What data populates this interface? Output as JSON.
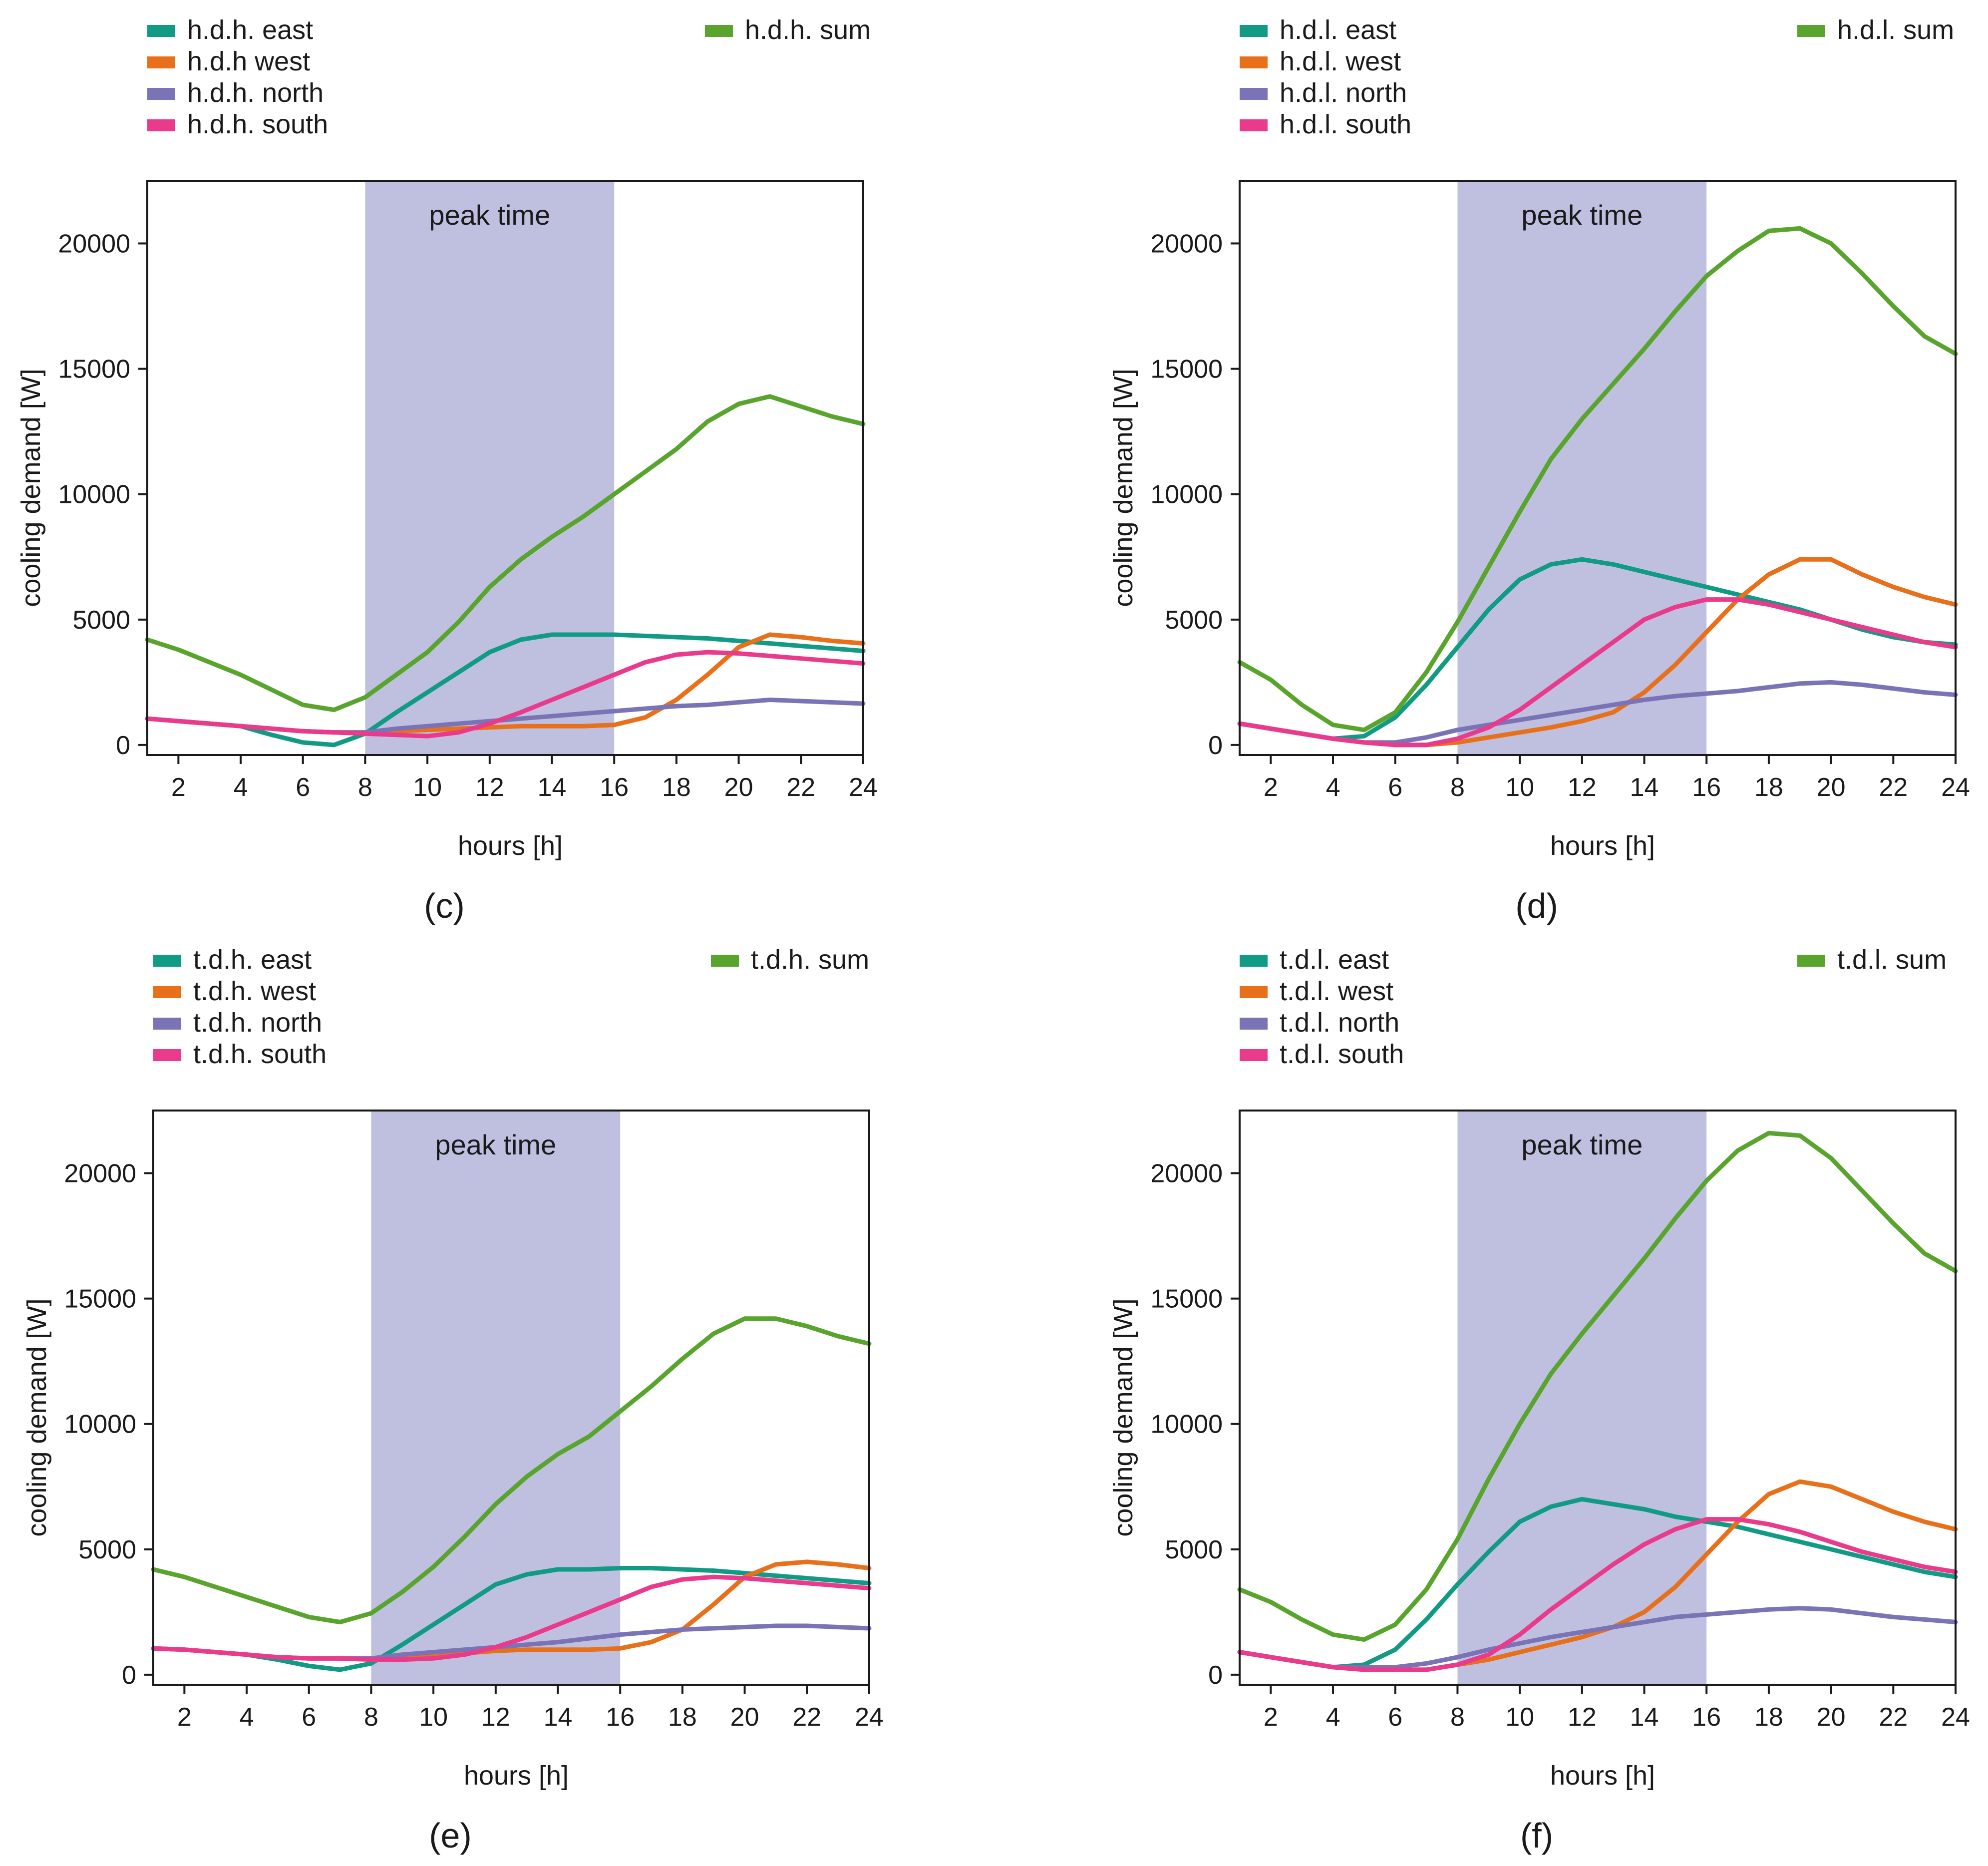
{
  "peak_label": "peak time",
  "colors": {
    "east": "#119b84",
    "west": "#e8701a",
    "north": "#7a73b6",
    "south": "#ea3a8c",
    "sum": "#58a42d",
    "peak": "#bfc0e0"
  },
  "chart_data": [
    {
      "type": "line",
      "panel_label": "(c)",
      "xlabel": "hours [h]",
      "ylabel": "cooling demand [W]",
      "xlim": [
        1,
        24
      ],
      "ylim": [
        -400,
        22500
      ],
      "xticks": [
        2,
        4,
        6,
        8,
        10,
        12,
        14,
        16,
        18,
        20,
        22,
        24
      ],
      "yticks": [
        0,
        5000,
        10000,
        15000,
        20000
      ],
      "peak_range": [
        8,
        16
      ],
      "x": [
        1,
        2,
        3,
        4,
        5,
        6,
        7,
        8,
        9,
        10,
        11,
        12,
        13,
        14,
        15,
        16,
        17,
        18,
        19,
        20,
        21,
        22,
        23,
        24
      ],
      "series": [
        {
          "key": "east",
          "name": "h.d.h. east",
          "values": [
            1050,
            950,
            850,
            750,
            400,
            100,
            0,
            450,
            1300,
            2100,
            2900,
            3700,
            4200,
            4400,
            4400,
            4400,
            4350,
            4300,
            4250,
            4150,
            4050,
            3950,
            3850,
            3750
          ]
        },
        {
          "key": "west",
          "name": "h.d.h west",
          "values": [
            1050,
            950,
            850,
            750,
            650,
            550,
            500,
            500,
            550,
            600,
            650,
            700,
            750,
            750,
            750,
            800,
            1100,
            1800,
            2800,
            3900,
            4400,
            4300,
            4150,
            4050
          ]
        },
        {
          "key": "north",
          "name": "h.d.h. north",
          "values": [
            1050,
            950,
            850,
            750,
            650,
            550,
            500,
            500,
            650,
            750,
            850,
            950,
            1050,
            1150,
            1250,
            1350,
            1450,
            1550,
            1600,
            1700,
            1800,
            1750,
            1700,
            1650
          ]
        },
        {
          "key": "south",
          "name": "h.d.h. south",
          "values": [
            1050,
            950,
            850,
            750,
            650,
            550,
            500,
            450,
            400,
            350,
            500,
            850,
            1300,
            1800,
            2300,
            2800,
            3300,
            3600,
            3700,
            3650,
            3550,
            3450,
            3350,
            3250
          ]
        },
        {
          "key": "sum",
          "name": "h.d.h. sum",
          "values": [
            4200,
            3800,
            3300,
            2800,
            2200,
            1600,
            1400,
            1900,
            2800,
            3700,
            4900,
            6300,
            7400,
            8300,
            9100,
            10000,
            10900,
            11800,
            12900,
            13600,
            13900,
            13500,
            13100,
            12800
          ]
        }
      ]
    },
    {
      "type": "line",
      "panel_label": "(d)",
      "xlabel": "hours [h]",
      "ylabel": "cooling demand [W]",
      "xlim": [
        1,
        24
      ],
      "ylim": [
        -400,
        22500
      ],
      "xticks": [
        2,
        4,
        6,
        8,
        10,
        12,
        14,
        16,
        18,
        20,
        22,
        24
      ],
      "yticks": [
        0,
        5000,
        10000,
        15000,
        20000
      ],
      "peak_range": [
        8,
        16
      ],
      "x": [
        1,
        2,
        3,
        4,
        5,
        6,
        7,
        8,
        9,
        10,
        11,
        12,
        13,
        14,
        15,
        16,
        17,
        18,
        19,
        20,
        21,
        22,
        23,
        24
      ],
      "series": [
        {
          "key": "east",
          "name": "h.d.l. east",
          "values": [
            850,
            650,
            450,
            250,
            350,
            1100,
            2400,
            3900,
            5400,
            6600,
            7200,
            7400,
            7200,
            6900,
            6600,
            6300,
            6000,
            5700,
            5400,
            5000,
            4600,
            4300,
            4100,
            4000
          ]
        },
        {
          "key": "west",
          "name": "h.d.l. west",
          "values": [
            850,
            650,
            450,
            250,
            100,
            0,
            0,
            100,
            300,
            500,
            700,
            950,
            1300,
            2100,
            3200,
            4500,
            5800,
            6800,
            7400,
            7400,
            6800,
            6300,
            5900,
            5600
          ]
        },
        {
          "key": "north",
          "name": "h.d.l. north",
          "values": [
            850,
            650,
            450,
            250,
            100,
            100,
            300,
            600,
            800,
            1000,
            1200,
            1400,
            1600,
            1800,
            1950,
            2050,
            2150,
            2300,
            2450,
            2500,
            2400,
            2250,
            2100,
            2000
          ]
        },
        {
          "key": "south",
          "name": "h.d.l. south",
          "values": [
            850,
            650,
            450,
            250,
            100,
            0,
            0,
            250,
            700,
            1400,
            2300,
            3200,
            4100,
            5000,
            5500,
            5800,
            5800,
            5600,
            5300,
            5000,
            4700,
            4400,
            4100,
            3900
          ]
        },
        {
          "key": "sum",
          "name": "h.d.l. sum",
          "values": [
            3300,
            2600,
            1600,
            800,
            600,
            1300,
            2900,
            4900,
            7100,
            9300,
            11400,
            13000,
            14400,
            15800,
            17300,
            18700,
            19700,
            20500,
            20600,
            20000,
            18800,
            17500,
            16300,
            15600
          ]
        }
      ]
    },
    {
      "type": "line",
      "panel_label": "(e)",
      "xlabel": "hours [h]",
      "ylabel": "cooling demand [W]",
      "xlim": [
        1,
        24
      ],
      "ylim": [
        -400,
        22500
      ],
      "xticks": [
        2,
        4,
        6,
        8,
        10,
        12,
        14,
        16,
        18,
        20,
        22,
        24
      ],
      "yticks": [
        0,
        5000,
        10000,
        15000,
        20000
      ],
      "peak_range": [
        8,
        16
      ],
      "x": [
        1,
        2,
        3,
        4,
        5,
        6,
        7,
        8,
        9,
        10,
        11,
        12,
        13,
        14,
        15,
        16,
        17,
        18,
        19,
        20,
        21,
        22,
        23,
        24
      ],
      "series": [
        {
          "key": "east",
          "name": "t.d.h. east",
          "values": [
            1050,
            1000,
            900,
            800,
            600,
            350,
            200,
            450,
            1200,
            2000,
            2800,
            3600,
            4000,
            4200,
            4200,
            4250,
            4250,
            4200,
            4150,
            4050,
            3950,
            3850,
            3750,
            3650
          ]
        },
        {
          "key": "west",
          "name": "t.d.h. west",
          "values": [
            1050,
            1000,
            900,
            800,
            700,
            650,
            650,
            650,
            700,
            750,
            850,
            950,
            1000,
            1000,
            1000,
            1050,
            1300,
            1800,
            2800,
            3900,
            4400,
            4500,
            4400,
            4250
          ]
        },
        {
          "key": "north",
          "name": "t.d.h. north",
          "values": [
            1050,
            1000,
            900,
            800,
            700,
            650,
            650,
            650,
            800,
            900,
            1000,
            1100,
            1200,
            1300,
            1450,
            1600,
            1700,
            1800,
            1850,
            1900,
            1950,
            1950,
            1900,
            1850
          ]
        },
        {
          "key": "south",
          "name": "t.d.h. south",
          "values": [
            1050,
            1000,
            900,
            800,
            700,
            650,
            650,
            600,
            600,
            650,
            800,
            1100,
            1500,
            2000,
            2500,
            3000,
            3500,
            3800,
            3900,
            3850,
            3750,
            3650,
            3550,
            3450
          ]
        },
        {
          "key": "sum",
          "name": "t.d.h. sum",
          "values": [
            4200,
            3900,
            3500,
            3100,
            2700,
            2300,
            2100,
            2450,
            3300,
            4300,
            5500,
            6800,
            7900,
            8800,
            9500,
            10500,
            11500,
            12600,
            13600,
            14200,
            14200,
            13900,
            13500,
            13200
          ]
        }
      ]
    },
    {
      "type": "line",
      "panel_label": "(f)",
      "xlabel": "hours [h]",
      "ylabel": "cooling demand [W]",
      "xlim": [
        1,
        24
      ],
      "ylim": [
        -400,
        22500
      ],
      "xticks": [
        2,
        4,
        6,
        8,
        10,
        12,
        14,
        16,
        18,
        20,
        22,
        24
      ],
      "yticks": [
        0,
        5000,
        10000,
        15000,
        20000
      ],
      "peak_range": [
        8,
        16
      ],
      "x": [
        1,
        2,
        3,
        4,
        5,
        6,
        7,
        8,
        9,
        10,
        11,
        12,
        13,
        14,
        15,
        16,
        17,
        18,
        19,
        20,
        21,
        22,
        23,
        24
      ],
      "series": [
        {
          "key": "east",
          "name": "t.d.l. east",
          "values": [
            900,
            700,
            500,
            300,
            400,
            1000,
            2200,
            3600,
            4900,
            6100,
            6700,
            7000,
            6800,
            6600,
            6300,
            6100,
            5900,
            5600,
            5300,
            5000,
            4700,
            4400,
            4100,
            3900
          ]
        },
        {
          "key": "west",
          "name": "t.d.l. west",
          "values": [
            900,
            700,
            500,
            300,
            200,
            200,
            200,
            400,
            600,
            900,
            1200,
            1500,
            1900,
            2500,
            3500,
            4800,
            6100,
            7200,
            7700,
            7500,
            7000,
            6500,
            6100,
            5800
          ]
        },
        {
          "key": "north",
          "name": "t.d.l. north",
          "values": [
            900,
            700,
            500,
            300,
            300,
            300,
            450,
            700,
            1000,
            1250,
            1500,
            1700,
            1900,
            2100,
            2300,
            2400,
            2500,
            2600,
            2650,
            2600,
            2450,
            2300,
            2200,
            2100
          ]
        },
        {
          "key": "south",
          "name": "t.d.l. south",
          "values": [
            900,
            700,
            500,
            300,
            200,
            200,
            200,
            400,
            800,
            1600,
            2600,
            3500,
            4400,
            5200,
            5800,
            6200,
            6200,
            6000,
            5700,
            5300,
            4900,
            4600,
            4300,
            4100
          ]
        },
        {
          "key": "sum",
          "name": "t.d.l. sum",
          "values": [
            3400,
            2900,
            2200,
            1600,
            1400,
            2000,
            3400,
            5400,
            7800,
            10000,
            12000,
            13600,
            15100,
            16600,
            18200,
            19700,
            20900,
            21600,
            21500,
            20600,
            19300,
            18000,
            16800,
            16100
          ]
        }
      ]
    }
  ]
}
